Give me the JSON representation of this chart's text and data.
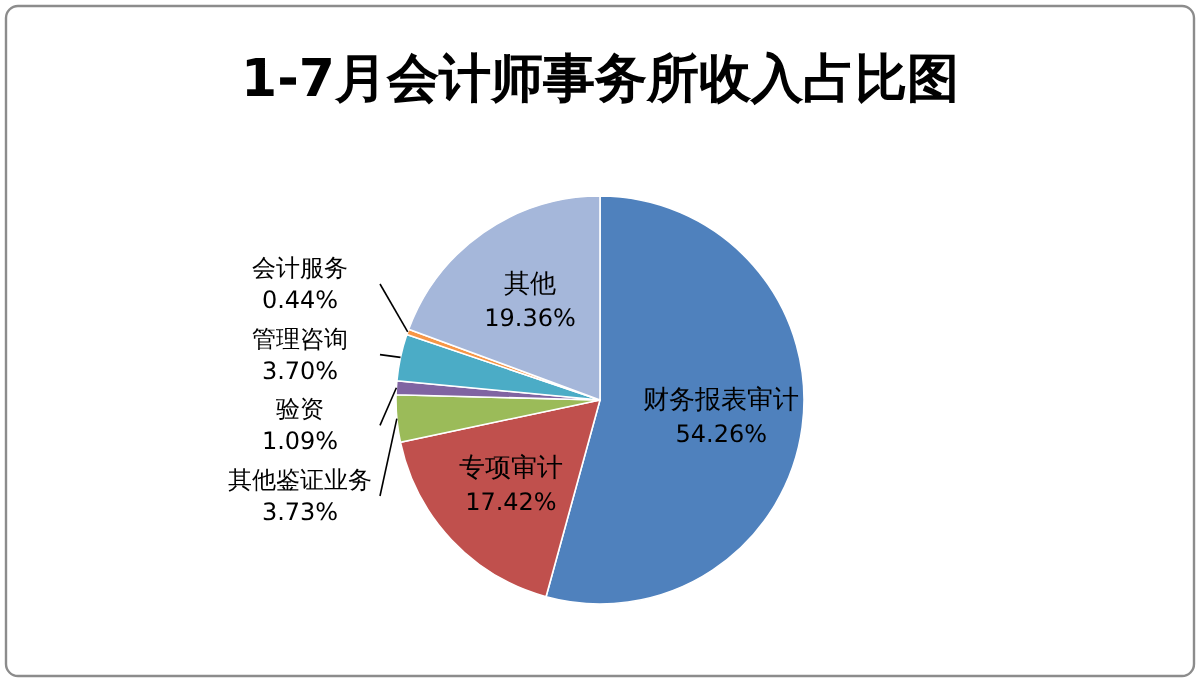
{
  "chart_data": {
    "type": "pie",
    "title": "1-7月会计师事务所收入占比图",
    "categories": [
      "财务报表审计",
      "专项审计",
      "其他鉴证业务",
      "验资",
      "管理咨询",
      "会计服务",
      "其他"
    ],
    "values": [
      54.26,
      17.42,
      3.73,
      1.09,
      3.7,
      0.44,
      19.36
    ],
    "value_labels": [
      "54.26%",
      "17.42%",
      "3.73%",
      "1.09%",
      "3.70%",
      "0.44%",
      "19.36%"
    ],
    "colors": [
      "#4f81bd",
      "#c0504d",
      "#9bbb59",
      "#8064a2",
      "#4bacc6",
      "#f79646",
      "#a5b7da"
    ]
  }
}
